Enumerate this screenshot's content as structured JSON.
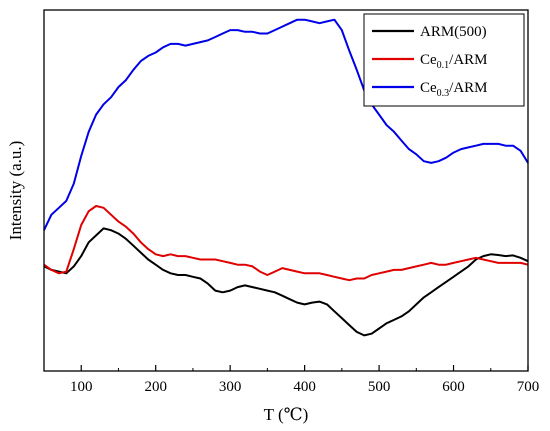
{
  "chart_data": {
    "type": "line",
    "xlabel": "T (℃)",
    "ylabel": "Intensity (a.u.)",
    "xlim": [
      50,
      700
    ],
    "xticks": [
      100,
      200,
      300,
      400,
      500,
      600,
      700
    ],
    "ylim": [
      0,
      100
    ],
    "yticks_shown": false,
    "legend_position": "top-right",
    "series": [
      {
        "name": "ARM(500)",
        "label_parts": [
          "ARM(500)",
          "",
          ""
        ],
        "color": "#000000",
        "points": [
          [
            50,
            28
          ],
          [
            60,
            27
          ],
          [
            70,
            26.5
          ],
          [
            80,
            26
          ],
          [
            90,
            28
          ],
          [
            100,
            31
          ],
          [
            110,
            35
          ],
          [
            120,
            37
          ],
          [
            130,
            39
          ],
          [
            140,
            38.5
          ],
          [
            150,
            37.5
          ],
          [
            160,
            36
          ],
          [
            170,
            34
          ],
          [
            180,
            32
          ],
          [
            190,
            30
          ],
          [
            200,
            28.5
          ],
          [
            210,
            27
          ],
          [
            220,
            26
          ],
          [
            230,
            25.5
          ],
          [
            240,
            25.5
          ],
          [
            250,
            25
          ],
          [
            260,
            24.5
          ],
          [
            270,
            23
          ],
          [
            280,
            21
          ],
          [
            290,
            20.5
          ],
          [
            300,
            21
          ],
          [
            310,
            22
          ],
          [
            320,
            22.5
          ],
          [
            330,
            22
          ],
          [
            340,
            21.5
          ],
          [
            350,
            21
          ],
          [
            360,
            20.5
          ],
          [
            370,
            19.5
          ],
          [
            380,
            18.5
          ],
          [
            390,
            17.5
          ],
          [
            400,
            17
          ],
          [
            410,
            17.5
          ],
          [
            420,
            17.8
          ],
          [
            430,
            17
          ],
          [
            440,
            15
          ],
          [
            450,
            13
          ],
          [
            460,
            11
          ],
          [
            470,
            9
          ],
          [
            480,
            8
          ],
          [
            490,
            8.5
          ],
          [
            500,
            10
          ],
          [
            510,
            11.5
          ],
          [
            520,
            12.5
          ],
          [
            530,
            13.5
          ],
          [
            540,
            15
          ],
          [
            550,
            17
          ],
          [
            560,
            19
          ],
          [
            570,
            20.5
          ],
          [
            580,
            22
          ],
          [
            590,
            23.5
          ],
          [
            600,
            25
          ],
          [
            610,
            26.5
          ],
          [
            620,
            28
          ],
          [
            630,
            30
          ],
          [
            640,
            31
          ],
          [
            650,
            31.5
          ],
          [
            660,
            31.3
          ],
          [
            670,
            31
          ],
          [
            680,
            31.2
          ],
          [
            690,
            30.5
          ],
          [
            700,
            29.5
          ]
        ]
      },
      {
        "name": "Ce0.1/ARM",
        "label_parts": [
          "Ce",
          "0.1",
          "/ARM"
        ],
        "color": "#e00000",
        "points": [
          [
            50,
            28.5
          ],
          [
            60,
            27
          ],
          [
            70,
            26
          ],
          [
            80,
            26.5
          ],
          [
            90,
            33
          ],
          [
            100,
            40
          ],
          [
            110,
            44
          ],
          [
            120,
            45.5
          ],
          [
            130,
            45
          ],
          [
            140,
            43
          ],
          [
            150,
            41
          ],
          [
            160,
            39.5
          ],
          [
            170,
            37.5
          ],
          [
            180,
            35
          ],
          [
            190,
            33
          ],
          [
            200,
            31.5
          ],
          [
            210,
            31
          ],
          [
            220,
            31.5
          ],
          [
            230,
            31
          ],
          [
            240,
            31
          ],
          [
            250,
            30.5
          ],
          [
            260,
            30
          ],
          [
            270,
            30
          ],
          [
            280,
            30
          ],
          [
            290,
            29.5
          ],
          [
            300,
            29
          ],
          [
            310,
            28.5
          ],
          [
            320,
            28.5
          ],
          [
            330,
            28
          ],
          [
            340,
            26.5
          ],
          [
            350,
            25.5
          ],
          [
            360,
            26.5
          ],
          [
            370,
            27.5
          ],
          [
            380,
            27
          ],
          [
            390,
            26.5
          ],
          [
            400,
            26
          ],
          [
            410,
            26
          ],
          [
            420,
            26
          ],
          [
            430,
            25.5
          ],
          [
            440,
            25
          ],
          [
            450,
            24.5
          ],
          [
            460,
            24
          ],
          [
            470,
            24.5
          ],
          [
            480,
            24.5
          ],
          [
            490,
            25.5
          ],
          [
            500,
            26
          ],
          [
            510,
            26.5
          ],
          [
            520,
            27
          ],
          [
            530,
            27
          ],
          [
            540,
            27.5
          ],
          [
            550,
            28
          ],
          [
            560,
            28.5
          ],
          [
            570,
            29
          ],
          [
            580,
            28.5
          ],
          [
            590,
            28.5
          ],
          [
            600,
            29
          ],
          [
            610,
            29.5
          ],
          [
            620,
            30
          ],
          [
            630,
            30.5
          ],
          [
            640,
            30
          ],
          [
            650,
            29.5
          ],
          [
            660,
            29
          ],
          [
            670,
            29
          ],
          [
            680,
            29
          ],
          [
            690,
            29
          ],
          [
            700,
            28.5
          ]
        ]
      },
      {
        "name": "Ce0.3/ARM",
        "label_parts": [
          "Ce",
          "0.3",
          "/ARM"
        ],
        "color": "#0000e8",
        "points": [
          [
            50,
            38.5
          ],
          [
            60,
            43
          ],
          [
            70,
            45
          ],
          [
            80,
            47
          ],
          [
            90,
            52
          ],
          [
            100,
            60
          ],
          [
            110,
            67
          ],
          [
            120,
            72
          ],
          [
            130,
            75
          ],
          [
            140,
            77
          ],
          [
            150,
            80
          ],
          [
            160,
            82
          ],
          [
            170,
            85
          ],
          [
            180,
            87.5
          ],
          [
            190,
            89
          ],
          [
            200,
            90
          ],
          [
            210,
            91.5
          ],
          [
            220,
            92.5
          ],
          [
            230,
            92.5
          ],
          [
            240,
            92
          ],
          [
            250,
            92.5
          ],
          [
            260,
            93
          ],
          [
            270,
            93.5
          ],
          [
            280,
            94.5
          ],
          [
            290,
            95.5
          ],
          [
            300,
            96.5
          ],
          [
            310,
            96.5
          ],
          [
            320,
            96
          ],
          [
            330,
            96
          ],
          [
            340,
            95.5
          ],
          [
            350,
            95.5
          ],
          [
            360,
            96.5
          ],
          [
            370,
            97.5
          ],
          [
            380,
            98.5
          ],
          [
            390,
            99.5
          ],
          [
            400,
            99.5
          ],
          [
            410,
            99
          ],
          [
            420,
            98.5
          ],
          [
            430,
            99
          ],
          [
            440,
            99.5
          ],
          [
            450,
            96.5
          ],
          [
            460,
            90.5
          ],
          [
            470,
            85
          ],
          [
            480,
            79
          ],
          [
            490,
            75
          ],
          [
            500,
            72
          ],
          [
            510,
            69
          ],
          [
            520,
            67
          ],
          [
            530,
            64.5
          ],
          [
            540,
            62
          ],
          [
            550,
            60.5
          ],
          [
            560,
            58.5
          ],
          [
            570,
            58
          ],
          [
            580,
            58.5
          ],
          [
            590,
            59.5
          ],
          [
            600,
            61
          ],
          [
            610,
            62
          ],
          [
            620,
            62.5
          ],
          [
            630,
            63
          ],
          [
            640,
            63.5
          ],
          [
            650,
            63.5
          ],
          [
            660,
            63.5
          ],
          [
            670,
            63
          ],
          [
            680,
            63
          ],
          [
            690,
            61.5
          ],
          [
            700,
            58
          ]
        ]
      }
    ]
  }
}
